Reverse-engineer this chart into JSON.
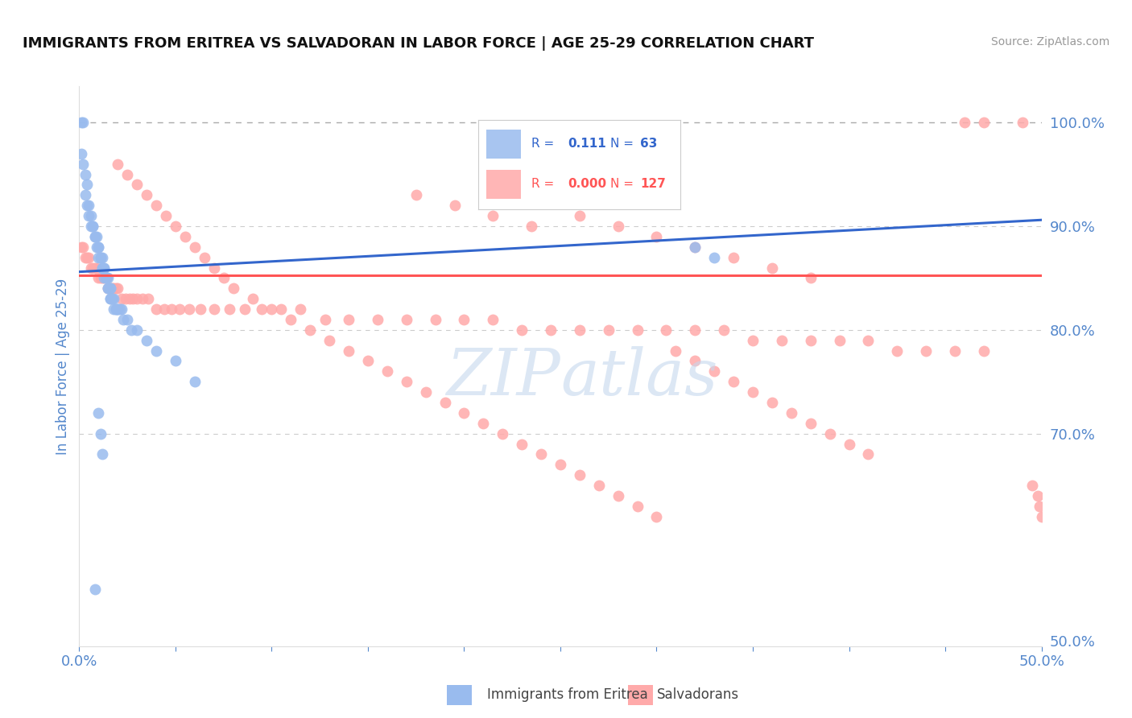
{
  "title": "IMMIGRANTS FROM ERITREA VS SALVADORAN IN LABOR FORCE | AGE 25-29 CORRELATION CHART",
  "source_text": "Source: ZipAtlas.com",
  "ylabel_text": "In Labor Force | Age 25-29",
  "x_min": 0.0,
  "x_max": 0.5,
  "y_min": 0.495,
  "y_max": 1.035,
  "r_eritrea": 0.111,
  "n_eritrea": 63,
  "r_salvadoran": 0.0,
  "n_salvadoran": 127,
  "blue_color": "#99BBEE",
  "pink_color": "#FFAAAA",
  "blue_line_color": "#3366CC",
  "pink_line_color": "#FF5555",
  "grid_color": "#CCCCCC",
  "axis_label_color": "#5588CC",
  "watermark_color": "#C5D8EE",
  "background_color": "#FFFFFF",
  "blue_trend_x0": 0.0,
  "blue_trend_y0": 0.856,
  "blue_trend_x1": 0.5,
  "blue_trend_y1": 0.906,
  "pink_trend_x0": 0.0,
  "pink_trend_y0": 0.853,
  "pink_trend_x1": 0.5,
  "pink_trend_y1": 0.853,
  "dashed_line_x0": 0.0,
  "dashed_line_x1": 0.5,
  "dashed_line_y": 1.0,
  "blue_x": [
    0.001,
    0.001,
    0.002,
    0.002,
    0.003,
    0.003,
    0.004,
    0.004,
    0.005,
    0.005,
    0.006,
    0.006,
    0.007,
    0.007,
    0.008,
    0.008,
    0.009,
    0.009,
    0.01,
    0.01,
    0.01,
    0.011,
    0.011,
    0.012,
    0.012,
    0.012,
    0.013,
    0.013,
    0.013,
    0.014,
    0.014,
    0.014,
    0.015,
    0.015,
    0.015,
    0.016,
    0.016,
    0.016,
    0.016,
    0.017,
    0.017,
    0.018,
    0.018,
    0.019,
    0.019,
    0.02,
    0.02,
    0.021,
    0.022,
    0.023,
    0.025,
    0.027,
    0.03,
    0.035,
    0.04,
    0.05,
    0.06,
    0.32,
    0.33,
    0.01,
    0.011,
    0.012,
    0.008
  ],
  "blue_y": [
    1.0,
    0.97,
    1.0,
    0.96,
    0.95,
    0.93,
    0.94,
    0.92,
    0.92,
    0.91,
    0.91,
    0.9,
    0.9,
    0.9,
    0.89,
    0.89,
    0.89,
    0.88,
    0.88,
    0.88,
    0.87,
    0.87,
    0.87,
    0.87,
    0.86,
    0.86,
    0.86,
    0.86,
    0.85,
    0.85,
    0.85,
    0.85,
    0.85,
    0.84,
    0.84,
    0.84,
    0.84,
    0.83,
    0.83,
    0.83,
    0.83,
    0.83,
    0.82,
    0.82,
    0.82,
    0.82,
    0.82,
    0.82,
    0.82,
    0.81,
    0.81,
    0.8,
    0.8,
    0.79,
    0.78,
    0.77,
    0.75,
    0.88,
    0.87,
    0.72,
    0.7,
    0.68,
    0.55
  ],
  "pink_x": [
    0.001,
    0.002,
    0.003,
    0.004,
    0.005,
    0.006,
    0.007,
    0.008,
    0.009,
    0.01,
    0.011,
    0.012,
    0.013,
    0.014,
    0.015,
    0.016,
    0.017,
    0.018,
    0.019,
    0.02,
    0.022,
    0.024,
    0.026,
    0.028,
    0.03,
    0.033,
    0.036,
    0.04,
    0.044,
    0.048,
    0.052,
    0.057,
    0.063,
    0.07,
    0.078,
    0.086,
    0.095,
    0.105,
    0.115,
    0.128,
    0.14,
    0.155,
    0.17,
    0.185,
    0.2,
    0.215,
    0.23,
    0.245,
    0.26,
    0.275,
    0.29,
    0.305,
    0.32,
    0.335,
    0.35,
    0.365,
    0.38,
    0.395,
    0.41,
    0.425,
    0.44,
    0.455,
    0.47,
    0.26,
    0.28,
    0.3,
    0.32,
    0.34,
    0.36,
    0.38,
    0.175,
    0.195,
    0.215,
    0.235,
    0.02,
    0.025,
    0.03,
    0.035,
    0.04,
    0.045,
    0.05,
    0.055,
    0.06,
    0.065,
    0.07,
    0.075,
    0.08,
    0.09,
    0.1,
    0.11,
    0.12,
    0.13,
    0.14,
    0.15,
    0.16,
    0.17,
    0.18,
    0.19,
    0.2,
    0.21,
    0.22,
    0.23,
    0.24,
    0.25,
    0.26,
    0.27,
    0.28,
    0.29,
    0.3,
    0.31,
    0.32,
    0.33,
    0.34,
    0.35,
    0.36,
    0.37,
    0.38,
    0.39,
    0.4,
    0.41,
    0.46,
    0.47,
    0.49,
    0.495,
    0.498,
    0.499,
    0.5
  ],
  "pink_y": [
    0.88,
    0.88,
    0.87,
    0.87,
    0.87,
    0.86,
    0.86,
    0.86,
    0.86,
    0.85,
    0.85,
    0.85,
    0.85,
    0.85,
    0.84,
    0.84,
    0.84,
    0.84,
    0.84,
    0.84,
    0.83,
    0.83,
    0.83,
    0.83,
    0.83,
    0.83,
    0.83,
    0.82,
    0.82,
    0.82,
    0.82,
    0.82,
    0.82,
    0.82,
    0.82,
    0.82,
    0.82,
    0.82,
    0.82,
    0.81,
    0.81,
    0.81,
    0.81,
    0.81,
    0.81,
    0.81,
    0.8,
    0.8,
    0.8,
    0.8,
    0.8,
    0.8,
    0.8,
    0.8,
    0.79,
    0.79,
    0.79,
    0.79,
    0.79,
    0.78,
    0.78,
    0.78,
    0.78,
    0.91,
    0.9,
    0.89,
    0.88,
    0.87,
    0.86,
    0.85,
    0.93,
    0.92,
    0.91,
    0.9,
    0.96,
    0.95,
    0.94,
    0.93,
    0.92,
    0.91,
    0.9,
    0.89,
    0.88,
    0.87,
    0.86,
    0.85,
    0.84,
    0.83,
    0.82,
    0.81,
    0.8,
    0.79,
    0.78,
    0.77,
    0.76,
    0.75,
    0.74,
    0.73,
    0.72,
    0.71,
    0.7,
    0.69,
    0.68,
    0.67,
    0.66,
    0.65,
    0.64,
    0.63,
    0.62,
    0.78,
    0.77,
    0.76,
    0.75,
    0.74,
    0.73,
    0.72,
    0.71,
    0.7,
    0.69,
    0.68,
    1.0,
    1.0,
    1.0,
    0.65,
    0.64,
    0.63,
    0.62
  ]
}
